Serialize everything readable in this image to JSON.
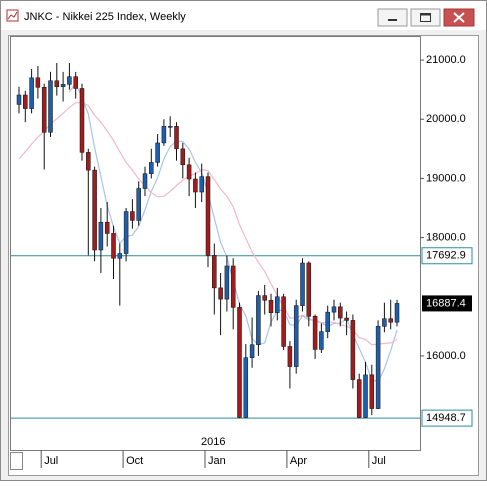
{
  "window": {
    "title": "JNKC - Nikkei 225 Index, Weekly"
  },
  "chart_data": {
    "type": "candlestick",
    "categories": [
      null,
      null,
      null,
      null,
      "Jul",
      null,
      null,
      null,
      null,
      null,
      null,
      null,
      null,
      null,
      null,
      null,
      null,
      "Oct",
      null,
      null,
      null,
      null,
      null,
      null,
      null,
      null,
      null,
      null,
      null,
      null,
      "Jan",
      null,
      null,
      null,
      null,
      null,
      null,
      null,
      null,
      null,
      null,
      null,
      null,
      "Apr",
      null,
      null,
      null,
      null,
      null,
      null,
      null,
      null,
      null,
      null,
      null,
      null,
      "Jul",
      null,
      null,
      null,
      null
    ],
    "year_label": "2016",
    "open": [
      20250,
      20410,
      20180,
      20700,
      20540,
      19780,
      20650,
      20550,
      20590,
      20720,
      20520,
      19440,
      19140,
      17790,
      18260,
      18070,
      17650,
      17730,
      18440,
      18290,
      18830,
      19080,
      19270,
      19600,
      19880,
      19880,
      19500,
      19230,
      18990,
      18770,
      19030,
      17700,
      17150,
      16960,
      17520,
      16820,
      14960,
      15970,
      16190,
      17020,
      16940,
      16730,
      17000,
      16160,
      15820,
      16850,
      17570,
      16670,
      16110,
      16410,
      16740,
      16830,
      16640,
      16600,
      15600,
      14960,
      15680,
      15110,
      16500,
      16630,
      16570
    ],
    "high": [
      20550,
      20480,
      20850,
      20900,
      20600,
      20800,
      20950,
      20800,
      20950,
      20800,
      20600,
      19500,
      19200,
      18500,
      18600,
      18200,
      17900,
      18500,
      18650,
      18950,
      19200,
      19500,
      19750,
      20000,
      20050,
      19950,
      19600,
      19350,
      19100,
      19250,
      19100,
      17900,
      17400,
      17700,
      17650,
      16900,
      16200,
      16650,
      17100,
      17200,
      17050,
      17150,
      17050,
      16250,
      16950,
      17650,
      17600,
      16700,
      16550,
      16850,
      16950,
      16900,
      16750,
      16700,
      15700,
      15900,
      15850,
      16600,
      16900,
      16950,
      16950
    ],
    "low": [
      20100,
      19950,
      20100,
      20350,
      19150,
      19700,
      20400,
      20300,
      20500,
      20350,
      19300,
      17700,
      17600,
      17400,
      17850,
      17300,
      16850,
      17600,
      18150,
      18200,
      18700,
      19000,
      19200,
      19550,
      19700,
      19300,
      19000,
      18700,
      18500,
      18600,
      17500,
      16700,
      16350,
      16750,
      16450,
      14948.7,
      14950,
      15800,
      16000,
      16700,
      16500,
      16600,
      16100,
      15450,
      15700,
      16750,
      16500,
      15950,
      16050,
      16300,
      16600,
      16500,
      16350,
      15450,
      14948.7,
      14950,
      15000,
      15100,
      16400,
      16450,
      16500
    ],
    "close": [
      20410,
      20180,
      20700,
      20540,
      19780,
      20650,
      20550,
      20590,
      20720,
      20520,
      19440,
      19140,
      17790,
      18260,
      18070,
      17650,
      17730,
      18440,
      18290,
      18830,
      19080,
      19270,
      19600,
      19880,
      19880,
      19500,
      19230,
      18990,
      18770,
      19030,
      17700,
      17150,
      16960,
      17520,
      16820,
      14960,
      15970,
      16190,
      17020,
      16940,
      16730,
      17000,
      16160,
      15820,
      16850,
      17570,
      16670,
      16110,
      16410,
      16740,
      16830,
      16640,
      16600,
      15600,
      14960,
      15680,
      15110,
      16500,
      16630,
      16570,
      16887.4
    ],
    "up_color": "#1f5ea8",
    "down_color": "#a11d1d",
    "lines": [
      {
        "color": "#a9c4e6",
        "values": [
          null,
          null,
          null,
          null,
          null,
          null,
          null,
          null,
          20460,
          20610,
          20360,
          20090,
          19520,
          19030,
          18540,
          18180,
          17900,
          18020,
          18040,
          18190,
          18470,
          18780,
          19010,
          19330,
          19540,
          19630,
          19620,
          19500,
          19270,
          19100,
          18740,
          18330,
          17920,
          17670,
          17270,
          16880,
          16680,
          16290,
          16190,
          16220,
          16570,
          16770,
          16770,
          16530,
          16510,
          16680,
          16610,
          16600,
          16560,
          16500,
          16550,
          16550,
          16640,
          16360,
          16130,
          15890,
          15590,
          15570,
          15780,
          16090,
          16440
        ]
      },
      {
        "color": "#f2b8c8",
        "values": [
          19330,
          19450,
          19580,
          19700,
          19800,
          19920,
          20010,
          20100,
          20200,
          20280,
          20280,
          20230,
          20070,
          19950,
          19800,
          19640,
          19450,
          19270,
          19140,
          18990,
          18880,
          18760,
          18690,
          18700,
          18780,
          18880,
          18970,
          19040,
          19080,
          19150,
          19130,
          18980,
          18820,
          18700,
          18520,
          18220,
          17990,
          17760,
          17580,
          17430,
          17220,
          17020,
          16830,
          16640,
          16640,
          16690,
          16640,
          16580,
          16560,
          16570,
          16570,
          16530,
          16500,
          16440,
          16310,
          16280,
          16190,
          16200,
          16210,
          16220,
          16280
        ]
      }
    ],
    "ylim": [
      14410,
      21390
    ],
    "yticks": [
      {
        "value": 21000,
        "label": "21000.0"
      },
      {
        "value": 20000,
        "label": "20000.0"
      },
      {
        "value": 19000,
        "label": "19000.0"
      },
      {
        "value": 18000,
        "label": "18000.0"
      },
      {
        "value": 16000,
        "label": "16000.0"
      }
    ],
    "hlines": [
      17692.9,
      14948.7
    ],
    "hline_color": "#2a8c9c"
  }
}
